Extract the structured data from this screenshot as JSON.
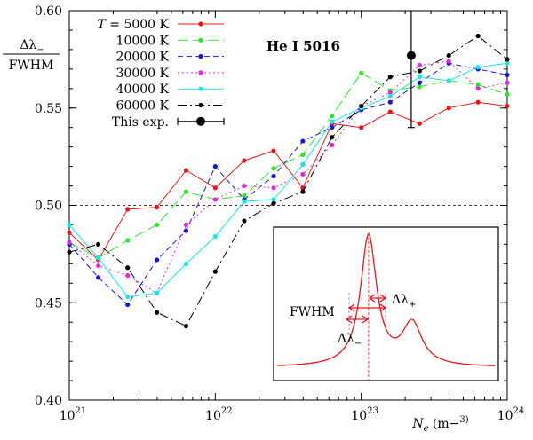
{
  "chart_data": {
    "type": "line",
    "xscale": "log",
    "xlim": [
      1e+21,
      1e+24
    ],
    "ylim": [
      0.4,
      0.6
    ],
    "xticks": [
      1e+21,
      1e+22,
      1e+23,
      1e+24
    ],
    "xtick_labels": [
      "1021",
      "1022",
      "1023",
      "1024"
    ],
    "yticks": [
      0.4,
      0.45,
      0.5,
      0.55,
      0.6
    ],
    "ytick_labels": [
      "0.40",
      "0.45",
      "0.50",
      "0.55",
      "0.60"
    ],
    "ylabel_num": "Δλ−",
    "ylabel_den": "FWHM",
    "xlabel": "Ne (m−3)",
    "annotation": "He I 5016",
    "reference_line": 0.5,
    "legend_placement": "top-left",
    "series": [
      {
        "name": "T = 5000 K",
        "color": "#e8161b",
        "dash": "",
        "x": [
          1e+21,
          1.58e+21,
          2.51e+21,
          3.98e+21,
          6.31e+21,
          1e+22,
          1.58e+22,
          2.51e+22,
          3.98e+22,
          6.31e+22,
          1e+23,
          1.58e+23,
          2.51e+23,
          3.98e+23,
          6.31e+23,
          1e+24
        ],
        "y": [
          0.486,
          0.472,
          0.498,
          0.499,
          0.518,
          0.509,
          0.523,
          0.528,
          0.509,
          0.542,
          0.54,
          0.548,
          0.542,
          0.55,
          0.553,
          0.551
        ]
      },
      {
        "name": "10000 K",
        "color": "#2ee52e",
        "dash": "12,5",
        "x": [
          1e+21,
          1.58e+21,
          2.51e+21,
          3.98e+21,
          6.31e+21,
          1e+22,
          1.58e+22,
          2.51e+22,
          3.98e+22,
          6.31e+22,
          1e+23,
          1.58e+23,
          2.51e+23,
          3.98e+23,
          6.31e+23,
          1e+24
        ],
        "y": [
          0.481,
          0.473,
          0.482,
          0.49,
          0.507,
          0.503,
          0.505,
          0.519,
          0.526,
          0.546,
          0.568,
          0.559,
          0.561,
          0.564,
          0.562,
          0.557
        ]
      },
      {
        "name": "20000 K",
        "color": "#1717d6",
        "dash": "6,4",
        "x": [
          1e+21,
          1.58e+21,
          2.51e+21,
          3.98e+21,
          6.31e+21,
          1e+22,
          1.58e+22,
          2.51e+22,
          3.98e+22,
          6.31e+22,
          1e+23,
          1.58e+23,
          2.51e+23,
          3.98e+23,
          6.31e+23,
          1e+24
        ],
        "y": [
          0.48,
          0.463,
          0.449,
          0.472,
          0.487,
          0.52,
          0.503,
          0.515,
          0.533,
          0.54,
          0.549,
          0.553,
          0.563,
          0.573,
          0.57,
          0.567
        ]
      },
      {
        "name": "30000 K",
        "color": "#e02ae0",
        "dash": "2,3",
        "x": [
          1e+21,
          1.58e+21,
          2.51e+21,
          3.98e+21,
          6.31e+21,
          1e+22,
          1.58e+22,
          2.51e+22,
          3.98e+22,
          6.31e+22,
          1e+23,
          1.58e+23,
          2.51e+23,
          3.98e+23,
          6.31e+23,
          1e+24
        ],
        "y": [
          0.481,
          0.469,
          0.464,
          0.455,
          0.49,
          0.503,
          0.51,
          0.509,
          0.516,
          0.531,
          0.551,
          0.558,
          0.572,
          0.574,
          0.56,
          0.563
        ]
      },
      {
        "name": "40000 K",
        "color": "#1ee3e3",
        "dash": "",
        "x": [
          1e+21,
          1.58e+21,
          2.51e+21,
          3.98e+21,
          6.31e+21,
          1e+22,
          1.58e+22,
          2.51e+22,
          3.98e+22,
          6.31e+22,
          1e+23,
          1.58e+23,
          2.51e+23,
          3.98e+23,
          6.31e+23,
          1e+24
        ],
        "y": [
          0.49,
          0.473,
          0.453,
          0.455,
          0.47,
          0.484,
          0.502,
          0.503,
          0.521,
          0.543,
          0.55,
          0.556,
          0.566,
          0.564,
          0.571,
          0.573
        ]
      },
      {
        "name": "60000 K",
        "color": "#000000",
        "dash": "10,4,2,4",
        "x": [
          1e+21,
          1.58e+21,
          2.51e+21,
          3.98e+21,
          6.31e+21,
          1e+22,
          1.58e+22,
          2.51e+22,
          3.98e+22,
          6.31e+22,
          1e+23,
          1.58e+23,
          2.51e+23,
          3.98e+23,
          6.31e+23,
          1e+24
        ],
        "y": [
          0.476,
          0.48,
          0.468,
          0.445,
          0.438,
          0.466,
          0.492,
          0.501,
          0.507,
          0.535,
          0.551,
          0.566,
          0.569,
          0.577,
          0.587,
          0.575
        ]
      }
    ],
    "experiment": {
      "name": "This exp.",
      "x": 2.2e+23,
      "y": 0.577,
      "yerr": [
        0.54,
        0.62
      ],
      "xerr": [
        1.5e+23,
        3.2e+23
      ]
    },
    "inset": {
      "labels": {
        "fwhm": "FWHM",
        "dl_minus": "Δλ−",
        "dl_plus": "Δλ+"
      }
    }
  }
}
